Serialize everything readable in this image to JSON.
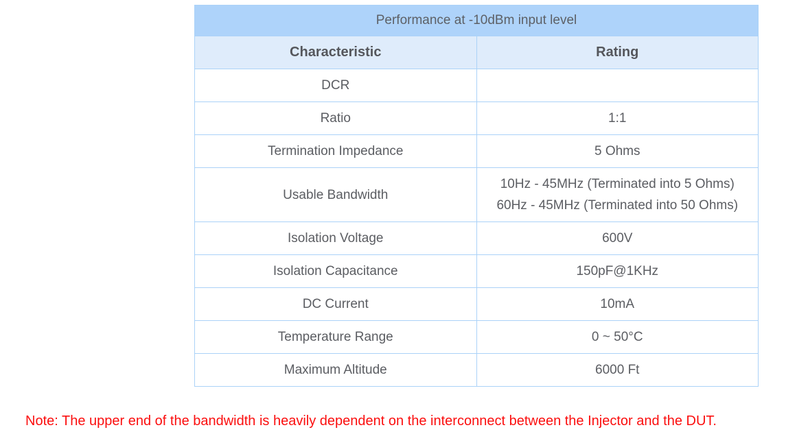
{
  "table": {
    "title": "Performance at -10dBm input level",
    "columns": [
      "Characteristic",
      "Rating"
    ],
    "rows": [
      {
        "characteristic": "DCR",
        "rating": ""
      },
      {
        "characteristic": "Ratio",
        "rating": "1:1"
      },
      {
        "characteristic": "Termination Impedance",
        "rating": "5 Ohms"
      },
      {
        "characteristic": "Usable Bandwidth",
        "rating": "10Hz - 45MHz (Terminated into 5 Ohms)\n60Hz - 45MHz (Terminated into 50 Ohms)"
      },
      {
        "characteristic": "Isolation Voltage",
        "rating": "600V"
      },
      {
        "characteristic": "Isolation Capacitance",
        "rating": "150pF@1KHz"
      },
      {
        "characteristic": "DC Current",
        "rating": "10mA"
      },
      {
        "characteristic": "Temperature Range",
        "rating": "0 ~ 50°C"
      },
      {
        "characteristic": "Maximum Altitude",
        "rating": "6000 Ft"
      }
    ]
  },
  "note": {
    "text": "Note: The upper end of the bandwidth is heavily dependent on the interconnect between the Injector and the DUT."
  },
  "colors": {
    "title_bg": "#aed3fa",
    "header_bg": "#dfecfb",
    "border": "#abd2f8",
    "body_text": "#5b5d62",
    "note_text": "#fb0e0e"
  }
}
